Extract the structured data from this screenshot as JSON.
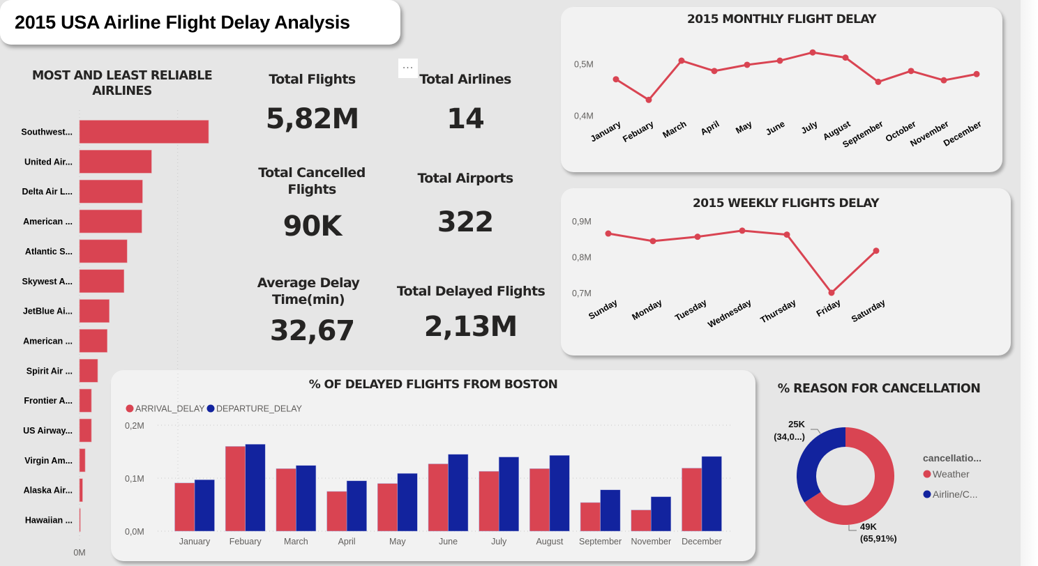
{
  "header": {
    "title": "2015 USA Airline Flight Delay Analysis",
    "more_options_label": "..."
  },
  "kpis": [
    {
      "label": "Total Flights",
      "value": "5,82M"
    },
    {
      "label": "Total Airlines",
      "value": "14"
    },
    {
      "label": "Total Cancelled Flights",
      "value": "90K"
    },
    {
      "label": "Total Airports",
      "value": "322"
    },
    {
      "label": "Average Delay Time(min)",
      "value": "32,67"
    },
    {
      "label": "Total Delayed Flights",
      "value": "2,13M"
    }
  ],
  "colors": {
    "red": "#d94452",
    "blue": "#12239e",
    "card": "#f2f2f2",
    "background": "#e6e6e6"
  },
  "chart_data": [
    {
      "id": "reliable-airlines",
      "type": "bar",
      "orientation": "horizontal",
      "title": "MOST AND LEAST RELIABLE AIRLINES",
      "categories": [
        "Southwest...",
        "United Air...",
        "Delta Air L...",
        "American ...",
        "Atlantic S...",
        "Skywest A...",
        "JetBlue Ai...",
        "American ...",
        "Spirit Air ...",
        "Frontier A...",
        "US Airway...",
        "Virgin Am...",
        "Alaska Air...",
        "Hawaiian ..."
      ],
      "values": [
        13.15,
        7.34,
        6.42,
        6.35,
        4.85,
        4.53,
        3.03,
        2.82,
        1.85,
        1.21,
        1.21,
        0.57,
        0.31,
        0.09
      ],
      "unit": "M",
      "xticks": [
        "0M",
        "10M"
      ],
      "xlim": [
        0,
        10
      ],
      "grid": true
    },
    {
      "id": "monthly-delay",
      "type": "line",
      "title": "2015 MONTHLY FLIGHT DELAY",
      "categories": [
        "January",
        "Febuary",
        "March",
        "April",
        "May",
        "June",
        "July",
        "August",
        "September",
        "October",
        "November",
        "December"
      ],
      "values": [
        0.47,
        0.43,
        0.506,
        0.486,
        0.498,
        0.506,
        0.522,
        0.512,
        0.465,
        0.486,
        0.468,
        0.48
      ],
      "unit": "M",
      "yticks": [
        "0,4M",
        "0,5M"
      ],
      "ylim": [
        0.4,
        0.5
      ],
      "grid": false
    },
    {
      "id": "weekly-delay",
      "type": "line",
      "title": "2015 WEEKLY FLIGHTS DELAY",
      "categories": [
        "Sunday",
        "Monday",
        "Tuesday",
        "Wednesday",
        "Thursday",
        "Friday",
        "Saturday"
      ],
      "values": [
        0.865,
        0.844,
        0.856,
        0.873,
        0.862,
        0.7,
        0.817
      ],
      "unit": "M",
      "yticks": [
        "0,7M",
        "0,8M",
        "0,9M"
      ],
      "ylim": [
        0.7,
        0.9
      ],
      "grid": false
    },
    {
      "id": "boston-delays",
      "type": "bar",
      "title": "% OF DELAYED FLIGHTS FROM BOSTON",
      "categories": [
        "January",
        "Febuary",
        "March",
        "April",
        "May",
        "June",
        "July",
        "August",
        "September",
        "November",
        "December"
      ],
      "series": [
        {
          "name": "ARRIVAL_DELAY",
          "color": "#d94452",
          "values": [
            0.091,
            0.16,
            0.118,
            0.075,
            0.09,
            0.127,
            0.113,
            0.118,
            0.054,
            0.04,
            0.119
          ]
        },
        {
          "name": "DEPARTURE_DELAY",
          "color": "#12239e",
          "values": [
            0.097,
            0.164,
            0.124,
            0.095,
            0.109,
            0.145,
            0.14,
            0.143,
            0.078,
            0.065,
            0.141
          ]
        }
      ],
      "unit": "M",
      "yticks": [
        "0,0M",
        "0,1M",
        "0,2M"
      ],
      "ylim": [
        0,
        0.2
      ],
      "legend": "top-left",
      "grid": true
    },
    {
      "id": "cancellation-reasons",
      "type": "pie",
      "donut": true,
      "title": "% REASON FOR CANCELLATION",
      "legend_title": "cancellatio...",
      "slices": [
        {
          "name": "Weather",
          "value": 49,
          "percent": 65.91,
          "color": "#d94452",
          "label_line1": "49K",
          "label_line2": "(65,91%)"
        },
        {
          "name": "Airline/C...",
          "value": 25,
          "percent": 34.09,
          "color": "#12239e",
          "label_line1": "25K",
          "label_line2": "(34,0...)"
        }
      ],
      "legend": "right"
    }
  ]
}
